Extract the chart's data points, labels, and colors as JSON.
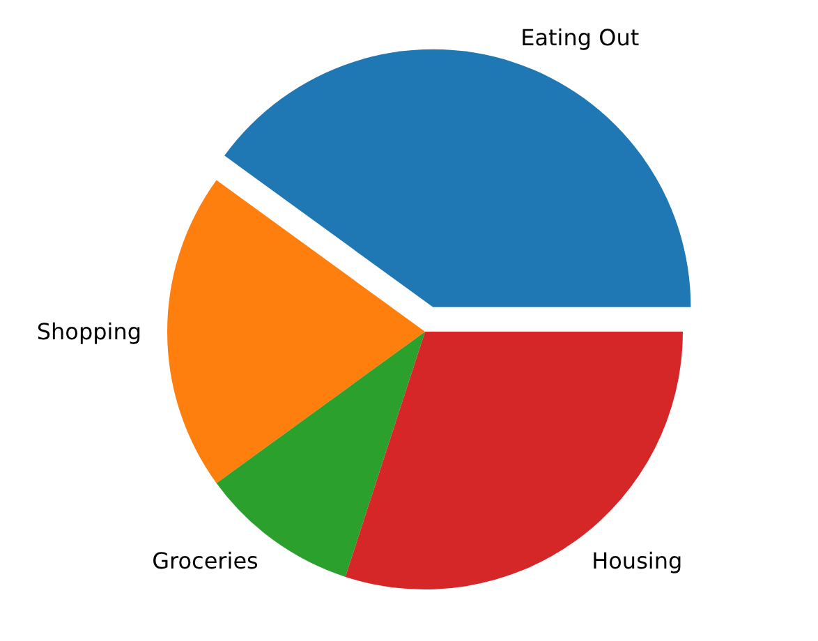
{
  "chart_data": {
    "type": "pie",
    "categories": [
      "Eating Out",
      "Shopping",
      "Groceries",
      "Housing"
    ],
    "values": [
      40,
      20,
      10,
      30
    ],
    "colors": [
      "#1f77b4",
      "#ff7f0e",
      "#2ca02c",
      "#d62728"
    ]
  }
}
